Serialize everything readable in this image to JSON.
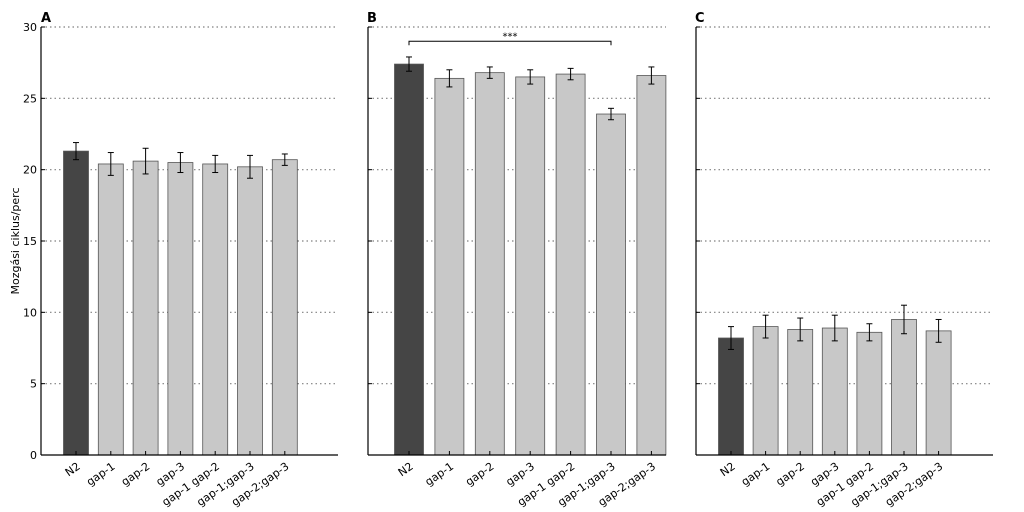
{
  "figure": {
    "ylabel": "Mozgási ciklus/perc"
  },
  "colors": {
    "wildtype": "#454545",
    "mutant": "#c8c8c8",
    "bar_edge": "#555555",
    "grid": "#808080"
  },
  "chart_data": [
    {
      "type": "bar",
      "panel_label": "A",
      "categories": [
        "N2",
        "gap-1",
        "gap-2",
        "gap-3",
        "gap-1 gap-2",
        "gap-1;gap-3",
        "gap-2;gap-3"
      ],
      "values": [
        21.3,
        20.4,
        20.6,
        20.5,
        20.4,
        20.2,
        20.7
      ],
      "errors": [
        0.6,
        0.8,
        0.9,
        0.7,
        0.6,
        0.8,
        0.4
      ],
      "ylabel": "Mozgási ciklus/perc",
      "ylim": [
        0,
        30
      ],
      "yticks": [
        0,
        5,
        10,
        15,
        20,
        25,
        30
      ],
      "grid": "horizontal dotted",
      "show_y_ticklabels": true
    },
    {
      "type": "bar",
      "panel_label": "B",
      "categories": [
        "N2",
        "gap-1",
        "gap-2",
        "gap-3",
        "gap-1 gap-2",
        "gap-1;gap-3",
        "gap-2;gap-3"
      ],
      "values": [
        27.4,
        26.4,
        26.8,
        26.5,
        26.7,
        23.9,
        26.6
      ],
      "errors": [
        0.5,
        0.6,
        0.4,
        0.5,
        0.4,
        0.4,
        0.6
      ],
      "ylim": [
        0,
        30
      ],
      "yticks": [
        0,
        5,
        10,
        15,
        20,
        25,
        30
      ],
      "grid": "horizontal dotted",
      "show_y_ticklabels": false,
      "annotations": [
        {
          "text": "***",
          "from": "N2",
          "to": "gap-1;gap-3",
          "y": 29.0
        }
      ]
    },
    {
      "type": "bar",
      "panel_label": "C",
      "categories": [
        "N2",
        "gap-1",
        "gap-2",
        "gap-3",
        "gap-1 gap-2",
        "gap-1;gap-3",
        "gap-2;gap-3"
      ],
      "values": [
        8.2,
        9.0,
        8.8,
        8.9,
        8.6,
        9.5,
        8.7
      ],
      "errors": [
        0.8,
        0.8,
        0.8,
        0.9,
        0.6,
        1.0,
        0.8
      ],
      "ylim": [
        0,
        30
      ],
      "yticks": [
        0,
        5,
        10,
        15,
        20,
        25,
        30
      ],
      "grid": "horizontal dotted",
      "show_y_ticklabels": false
    }
  ]
}
